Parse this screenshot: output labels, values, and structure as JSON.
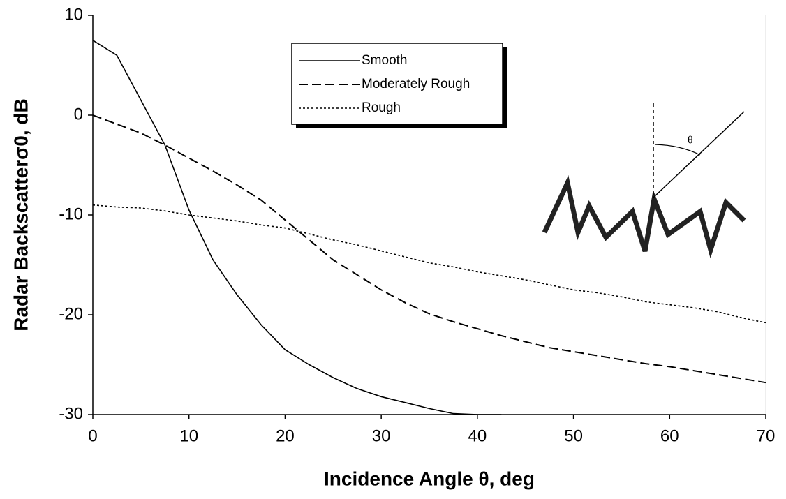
{
  "chart_data": {
    "type": "line",
    "xlabel": "Incidence Angle θ, deg",
    "ylabel": "Radar Backscatterσ0, dB",
    "annotations": [
      "θ"
    ],
    "x": [
      0,
      2.5,
      5,
      7.5,
      10,
      12.5,
      15,
      17.5,
      20,
      22.5,
      25,
      27.5,
      30,
      32.5,
      35,
      37.5,
      40,
      42.5,
      45,
      47.5,
      50,
      52.5,
      55,
      57.5,
      60,
      62.5,
      65,
      67.5,
      70
    ],
    "series": [
      {
        "name": "Smooth",
        "color": "#000000",
        "dash": "solid",
        "values": [
          7.5,
          6,
          1.5,
          -3,
          -9.5,
          -14.5,
          -18,
          -21,
          -23.5,
          -25,
          -26.3,
          -27.4,
          -28.2,
          -28.8,
          -29.4,
          -29.9,
          -30,
          -30,
          null,
          null,
          null,
          null,
          null,
          null,
          null,
          null,
          null,
          null,
          null
        ]
      },
      {
        "name": "Moderately Rough",
        "color": "#000000",
        "dash": "dashed",
        "values": [
          0,
          -0.9,
          -1.8,
          -3,
          -4.3,
          -5.6,
          -7,
          -8.5,
          -10.5,
          -12.5,
          -14.5,
          -16,
          -17.5,
          -18.8,
          -19.9,
          -20.7,
          -21.4,
          -22.1,
          -22.7,
          -23.3,
          -23.7,
          -24.1,
          -24.5,
          -24.9,
          -25.2,
          -25.6,
          -26,
          -26.4,
          -26.8
        ]
      },
      {
        "name": "Rough",
        "color": "#000000",
        "dash": "dotted",
        "values": [
          -9,
          -9.2,
          -9.3,
          -9.6,
          -10,
          -10.3,
          -10.6,
          -11,
          -11.3,
          -11.9,
          -12.5,
          -13,
          -13.6,
          -14.2,
          -14.8,
          -15.2,
          -15.7,
          -16.1,
          -16.5,
          -17,
          -17.5,
          -17.8,
          -18.2,
          -18.7,
          -19,
          -19.3,
          -19.7,
          -20.3,
          -20.8
        ]
      }
    ],
    "xlim": [
      0,
      70
    ],
    "xticks": [
      0,
      10,
      20,
      30,
      40,
      50,
      60,
      70
    ],
    "ylim": [
      -30,
      10
    ],
    "yticks": [
      -30,
      -20,
      -10,
      0,
      10
    ],
    "grid": false,
    "legend": "top"
  }
}
